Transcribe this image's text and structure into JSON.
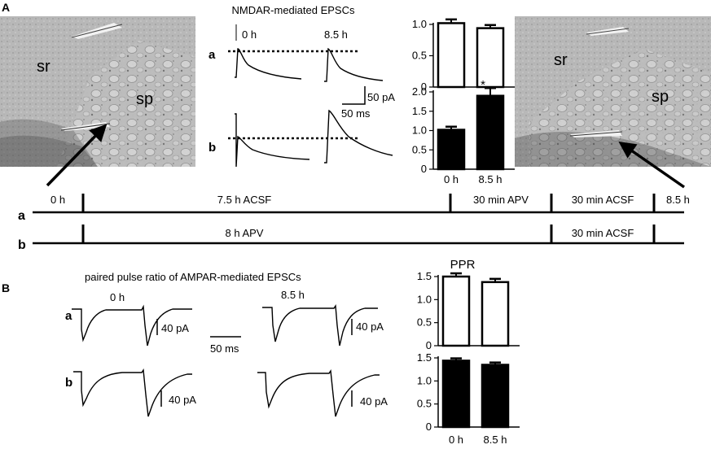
{
  "panel_a": {
    "label": "A",
    "title": "NMDAR-mediated EPSCs",
    "time_start": "0 h",
    "time_end": "8.5 h",
    "row_a": "a",
    "row_b": "b",
    "scale_pa": "50 pA",
    "scale_ms": "50 ms",
    "image_left": {
      "label_sr": "sr",
      "label_sp": "sp"
    },
    "image_right": {
      "label_sr": "sr",
      "label_sp": "sp"
    },
    "timeline": {
      "start": "0 h",
      "end": "8.5 h",
      "a_segments": [
        "7.5 h ACSF",
        "30 min APV",
        "30 min ACSF"
      ],
      "b_segments": [
        "8 h APV",
        "30 min ACSF"
      ]
    },
    "significance_mark": "*"
  },
  "panel_b": {
    "label": "B",
    "title": "paired pulse ratio of AMPAR-mediated EPSCs",
    "time_start": "0 h",
    "time_end": "8.5 h",
    "row_a": "a",
    "row_b": "b",
    "scale_pa": "40 pA",
    "scale_ms": "50 ms",
    "ppr_title": "PPR"
  },
  "chart_data": [
    {
      "type": "bar",
      "id": "A-a",
      "categories": [
        "0 h",
        "8.5 h"
      ],
      "values": [
        1.02,
        0.94
      ],
      "errors": [
        0.06,
        0.05
      ],
      "ylim": [
        0,
        1.0
      ],
      "yticks": [
        "0",
        "0.5",
        "1.0"
      ],
      "fill": "white"
    },
    {
      "type": "bar",
      "id": "A-b",
      "categories": [
        "0 h",
        "8.5 h"
      ],
      "values": [
        1.02,
        1.9
      ],
      "errors": [
        0.08,
        0.2
      ],
      "ylim": [
        0,
        2.0
      ],
      "yticks": [
        "0",
        "0.5",
        "1.0",
        "1.5",
        "2.0"
      ],
      "fill": "black"
    },
    {
      "type": "bar",
      "id": "B-a",
      "title": "PPR",
      "categories": [
        "0 h",
        "8.5 h"
      ],
      "values": [
        1.5,
        1.38
      ],
      "errors": [
        0.07,
        0.07
      ],
      "ylim": [
        0,
        1.5
      ],
      "yticks": [
        "0",
        "0.5",
        "1.0",
        "1.5"
      ],
      "fill": "white"
    },
    {
      "type": "bar",
      "id": "B-b",
      "categories": [
        "0 h",
        "8.5 h"
      ],
      "values": [
        1.44,
        1.35
      ],
      "errors": [
        0.05,
        0.05
      ],
      "ylim": [
        0,
        1.5
      ],
      "yticks": [
        "0",
        "0.5",
        "1.0",
        "1.5"
      ],
      "fill": "black"
    }
  ]
}
